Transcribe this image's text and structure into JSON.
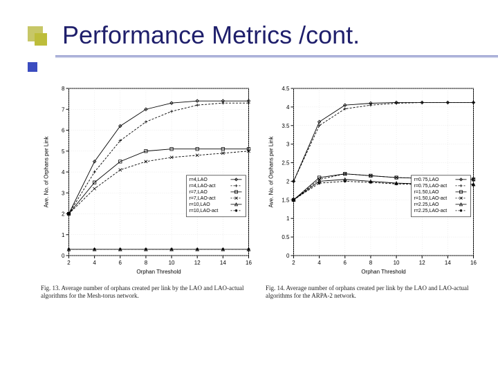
{
  "slide": {
    "title": "Performance Metrics /cont.",
    "title_color": "#1f1f6b",
    "bullet_colors": {
      "outer": "#c7c767",
      "inner": "#bdbd3a"
    },
    "underline_color": "#9aa0d0",
    "accent_color": "#3b4cc0"
  },
  "chart_left": {
    "type": "line",
    "ylabel": "Ave. No. of Orphans per Link",
    "xlabel": "Orphan Threshold",
    "xlim": [
      2,
      16
    ],
    "ylim": [
      0,
      8
    ],
    "xticks": [
      2,
      4,
      6,
      8,
      10,
      12,
      14,
      16
    ],
    "yticks": [
      0,
      1,
      2,
      3,
      4,
      5,
      6,
      7,
      8
    ],
    "background_color": "#ffffff",
    "grid_color": "#dcdcdc",
    "axis_color": "#000000",
    "tick_fontsize": 8,
    "label_fontsize": 8,
    "legend_pos": "inside-right-lower",
    "series": [
      {
        "name": "r=4,LAO",
        "marker": "diamond",
        "dash": "solid",
        "x": [
          2,
          4,
          6,
          8,
          10,
          12,
          14,
          16
        ],
        "y": [
          2.0,
          4.5,
          6.2,
          7.0,
          7.3,
          7.4,
          7.4,
          7.4
        ]
      },
      {
        "name": "r=4,LAO-act",
        "marker": "plus",
        "dash": "dashed",
        "x": [
          2,
          4,
          6,
          8,
          10,
          12,
          14,
          16
        ],
        "y": [
          2.0,
          4.0,
          5.5,
          6.4,
          6.9,
          7.2,
          7.3,
          7.3
        ]
      },
      {
        "name": "r=7,LAO",
        "marker": "square",
        "dash": "solid",
        "x": [
          2,
          4,
          6,
          8,
          10,
          12,
          14,
          16
        ],
        "y": [
          2.0,
          3.5,
          4.5,
          5.0,
          5.1,
          5.1,
          5.1,
          5.1
        ]
      },
      {
        "name": "r=7,LAO-act",
        "marker": "x",
        "dash": "dashed",
        "x": [
          2,
          4,
          6,
          8,
          10,
          12,
          14,
          16
        ],
        "y": [
          2.0,
          3.2,
          4.1,
          4.5,
          4.7,
          4.8,
          4.9,
          5.0
        ]
      },
      {
        "name": "r=10,LAO",
        "marker": "triangle",
        "dash": "solid",
        "x": [
          2,
          4,
          6,
          8,
          10,
          12,
          14,
          16
        ],
        "y": [
          0.3,
          0.3,
          0.3,
          0.3,
          0.3,
          0.3,
          0.3,
          0.3
        ]
      },
      {
        "name": "r=10,LAO-act",
        "marker": "star",
        "dash": "dashed",
        "x": [
          2,
          4,
          6,
          8,
          10,
          12,
          14,
          16
        ],
        "y": [
          0.3,
          0.3,
          0.3,
          0.3,
          0.3,
          0.3,
          0.3,
          0.3
        ]
      }
    ],
    "caption": "Fig. 13.   Average number of orphans created per link by the LAO and LAO-actual algorithms for the Mesh-torus network."
  },
  "chart_right": {
    "type": "line",
    "ylabel": "Ave. No. of Orphans per Link",
    "xlabel": "Orphan Threshold",
    "xlim": [
      2,
      16
    ],
    "ylim": [
      0,
      4.5
    ],
    "xticks": [
      2,
      4,
      6,
      8,
      10,
      12,
      14,
      16
    ],
    "yticks": [
      0,
      0.5,
      1,
      1.5,
      2,
      2.5,
      3,
      3.5,
      4,
      4.5
    ],
    "background_color": "#ffffff",
    "grid_color": "#dcdcdc",
    "axis_color": "#000000",
    "tick_fontsize": 8,
    "label_fontsize": 8,
    "legend_pos": "inside-right-lower",
    "series": [
      {
        "name": "r=0.75,LAO",
        "marker": "diamond",
        "dash": "solid",
        "x": [
          2,
          4,
          6,
          8,
          10,
          12,
          14,
          16
        ],
        "y": [
          2.0,
          3.6,
          4.05,
          4.1,
          4.12,
          4.12,
          4.12,
          4.12
        ]
      },
      {
        "name": "r=0.75,LAO-act",
        "marker": "plus",
        "dash": "dashed",
        "x": [
          2,
          4,
          6,
          8,
          10,
          12,
          14,
          16
        ],
        "y": [
          2.0,
          3.5,
          3.95,
          4.05,
          4.1,
          4.12,
          4.12,
          4.12
        ]
      },
      {
        "name": "r=1.50,LAO",
        "marker": "square",
        "dash": "solid",
        "x": [
          2,
          4,
          6,
          8,
          10,
          12,
          14,
          16
        ],
        "y": [
          1.5,
          2.1,
          2.2,
          2.15,
          2.1,
          2.08,
          2.06,
          2.05
        ]
      },
      {
        "name": "r=1.50,LAO-act",
        "marker": "x",
        "dash": "dashed",
        "x": [
          2,
          4,
          6,
          8,
          10,
          12,
          14,
          16
        ],
        "y": [
          1.5,
          2.05,
          2.2,
          2.15,
          2.1,
          2.08,
          2.06,
          2.05
        ]
      },
      {
        "name": "r=2.25,LAO",
        "marker": "triangle",
        "dash": "solid",
        "x": [
          2,
          4,
          6,
          8,
          10,
          12,
          14,
          16
        ],
        "y": [
          1.5,
          2.0,
          2.05,
          2.0,
          1.95,
          1.93,
          1.92,
          1.92
        ]
      },
      {
        "name": "r=2.25,LAO-act",
        "marker": "star",
        "dash": "dashed",
        "x": [
          2,
          4,
          6,
          8,
          10,
          12,
          14,
          16
        ],
        "y": [
          1.5,
          1.95,
          2.0,
          1.97,
          1.93,
          1.91,
          1.9,
          1.9
        ]
      }
    ],
    "caption": "Fig. 14.   Average number of orphans created per link by the LAO and LAO-actual algorithms for the ARPA-2 network."
  }
}
